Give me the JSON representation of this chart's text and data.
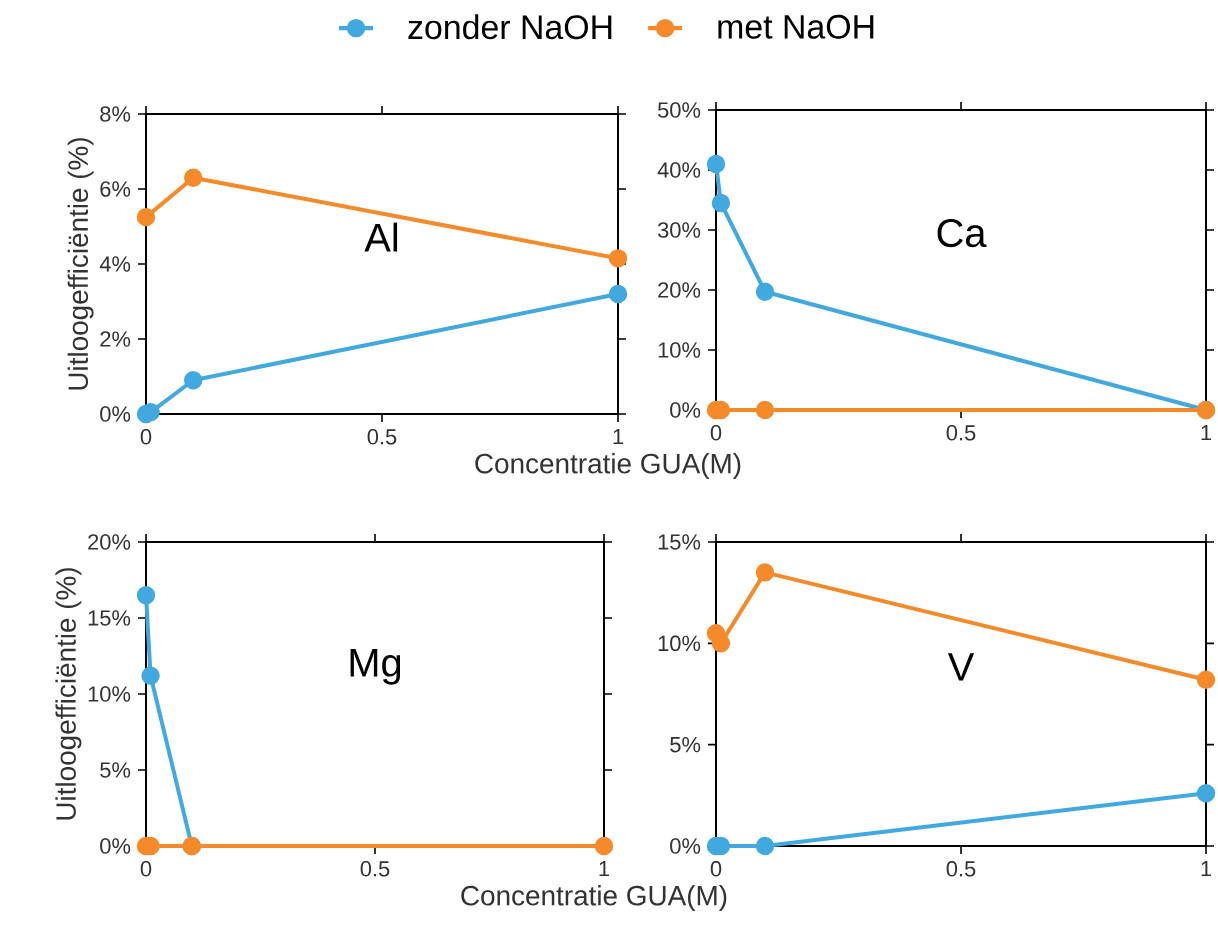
{
  "chart_data": [
    {
      "type": "line",
      "title": "Al",
      "ylabel": "Uitloogefficiëntie (%)",
      "xlabel": "Concentratie GUA(M)",
      "x": [
        0,
        0.01,
        0.1,
        1
      ],
      "xlim": [
        0,
        1
      ],
      "xticks": [
        0,
        0.5,
        1
      ],
      "ylim": [
        0,
        8
      ],
      "yticks": [
        {
          "value": 0,
          "label": "0%"
        },
        {
          "value": 2,
          "label": "2%"
        },
        {
          "value": 4,
          "label": "4%"
        },
        {
          "value": 6,
          "label": "6%"
        },
        {
          "value": 8,
          "label": "8%"
        }
      ],
      "marker": "circle",
      "legend": "top",
      "series": [
        {
          "name": "zonder NaOH",
          "color": "#41a8e0",
          "values": [
            0,
            0.05,
            0.9,
            3.2
          ]
        },
        {
          "name": "met NaOH",
          "color": "#f58a2a",
          "values": [
            5.25,
            null,
            6.3,
            4.15
          ]
        }
      ]
    },
    {
      "type": "line",
      "title": "Ca",
      "x": [
        0,
        0.01,
        0.1,
        1
      ],
      "xlim": [
        0,
        1
      ],
      "xticks": [
        0,
        0.5,
        1
      ],
      "ylim": [
        0,
        50
      ],
      "yticks": [
        {
          "value": 0,
          "label": "0%"
        },
        {
          "value": 10,
          "label": "10%"
        },
        {
          "value": 20,
          "label": "20%"
        },
        {
          "value": 30,
          "label": "30%"
        },
        {
          "value": 40,
          "label": "40%"
        },
        {
          "value": 50,
          "label": "50%"
        }
      ],
      "marker": "circle",
      "series": [
        {
          "color": "#41a8e0",
          "values": [
            41,
            34.5,
            19.7,
            0
          ]
        },
        {
          "color": "#f58a2a",
          "values": [
            0,
            0,
            0,
            0
          ]
        }
      ]
    },
    {
      "type": "line",
      "title": "Mg",
      "ylabel": "Uitloogefficiëntie (%)",
      "xlabel": "Concentratie GUA(M)",
      "x": [
        0,
        0.01,
        0.1,
        1
      ],
      "xlim": [
        0,
        1
      ],
      "xticks": [
        0,
        0.5,
        1
      ],
      "ylim": [
        0,
        20
      ],
      "yticks": [
        {
          "value": 0,
          "label": "0%"
        },
        {
          "value": 5,
          "label": "5%"
        },
        {
          "value": 10,
          "label": "10%"
        },
        {
          "value": 15,
          "label": "15%"
        },
        {
          "value": 20,
          "label": "20%"
        }
      ],
      "marker": "circle",
      "series": [
        {
          "color": "#41a8e0",
          "values": [
            16.5,
            11.2,
            0,
            null
          ]
        },
        {
          "color": "#f58a2a",
          "values": [
            0,
            0,
            0,
            0
          ]
        }
      ]
    },
    {
      "type": "line",
      "title": "V",
      "x": [
        0,
        0.01,
        0.1,
        1
      ],
      "xlim": [
        0,
        1
      ],
      "xticks": [
        0,
        0.5,
        1
      ],
      "ylim": [
        0,
        15
      ],
      "yticks": [
        {
          "value": 0,
          "label": "0%"
        },
        {
          "value": 5,
          "label": "5%"
        },
        {
          "value": 10,
          "label": "10%"
        },
        {
          "value": 15,
          "label": "15%"
        }
      ],
      "marker": "circle",
      "series": [
        {
          "color": "#41a8e0",
          "values": [
            0,
            0,
            0,
            2.6
          ]
        },
        {
          "color": "#f58a2a",
          "values": [
            10.5,
            10,
            13.5,
            8.2
          ]
        }
      ]
    }
  ]
}
